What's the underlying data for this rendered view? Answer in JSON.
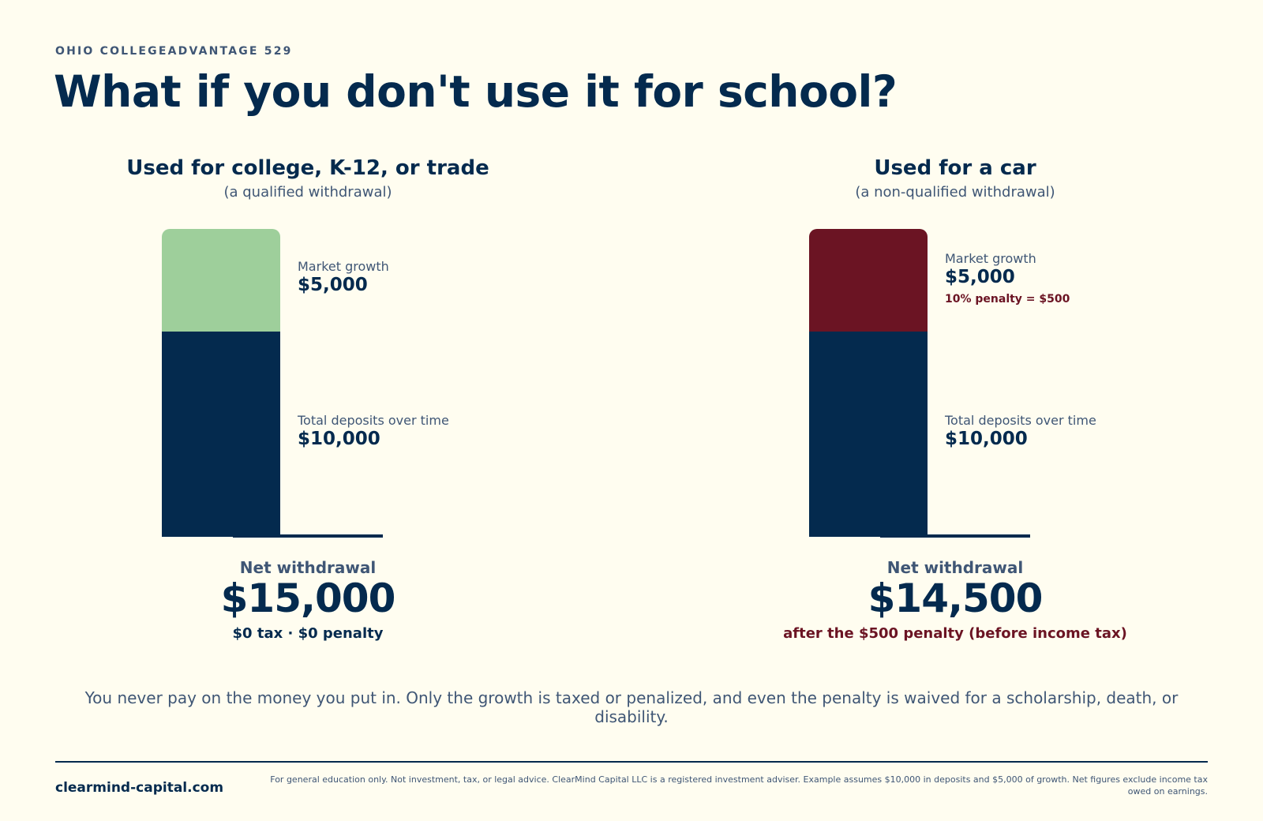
{
  "header": {
    "eyebrow": "OHIO COLLEGEADVANTAGE 529",
    "headline": "What if you don't use it for school?"
  },
  "colors": {
    "navy": "#042a4e",
    "slate": "#3f5675",
    "green": "#9ecf9b",
    "maroon": "#6b1423",
    "background": "#fffdf0"
  },
  "chart_data": [
    {
      "type": "bar",
      "stacked": true,
      "title": "Used for college, K-12, or trade",
      "subtitle": "(a qualified withdrawal)",
      "categories": [
        ""
      ],
      "series": [
        {
          "name": "Total deposits over time",
          "values": [
            10000
          ],
          "value_label": "$10,000",
          "color": "#042a4e"
        },
        {
          "name": "Market growth",
          "values": [
            5000
          ],
          "value_label": "$5,000",
          "color": "#9ecf9b",
          "note": ""
        }
      ],
      "ylim": [
        0,
        15000
      ],
      "net_label": "Net withdrawal",
      "net_value": "$15,000",
      "net_note": "$0 tax · $0 penalty",
      "net_note_color": "#042a4e"
    },
    {
      "type": "bar",
      "stacked": true,
      "title": "Used for a car",
      "subtitle": "(a non-qualified withdrawal)",
      "categories": [
        ""
      ],
      "series": [
        {
          "name": "Total deposits over time",
          "values": [
            10000
          ],
          "value_label": "$10,000",
          "color": "#042a4e"
        },
        {
          "name": "Market growth",
          "values": [
            5000
          ],
          "value_label": "$5,000",
          "color": "#6b1423",
          "note": "10% penalty = $500"
        }
      ],
      "ylim": [
        0,
        15000
      ],
      "net_label": "Net withdrawal",
      "net_value": "$14,500",
      "net_note": "after the $500 penalty (before income tax)",
      "net_note_color": "#6b1423"
    }
  ],
  "summary": "You never pay on the money you put in. Only the growth is taxed or penalized, and even the penalty is waived for a scholarship, death, or disability.",
  "footer": {
    "site": "clearmind-capital.com",
    "disclaimer": "For general education only. Not investment, tax, or legal advice. ClearMind Capital LLC is a registered investment adviser. Example assumes $10,000 in deposits and $5,000 of growth. Net figures exclude income tax owed on earnings."
  }
}
